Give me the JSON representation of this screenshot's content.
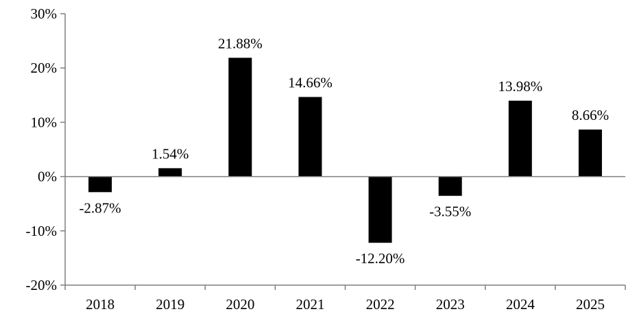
{
  "chart_data": {
    "type": "bar",
    "title": "",
    "xlabel": "",
    "ylabel": "",
    "categories": [
      "2018",
      "2019",
      "2020",
      "2021",
      "2022",
      "2023",
      "2024",
      "2025"
    ],
    "values": [
      -2.87,
      1.54,
      21.88,
      14.66,
      -12.2,
      -3.55,
      13.98,
      8.66
    ],
    "data_labels": [
      "-2.87%",
      "1.54%",
      "21.88%",
      "14.66%",
      "-12.20%",
      "-3.55%",
      "13.98%",
      "8.66%"
    ],
    "ylim": [
      -20,
      30
    ],
    "yticks": [
      -20,
      -10,
      0,
      10,
      20,
      30
    ],
    "ytick_labels": [
      "-20%",
      "-10%",
      "0%",
      "10%",
      "20%",
      "30%"
    ],
    "grid": false,
    "legend": "none",
    "bar_color": "#000000",
    "axis_color": "#7f7f7f"
  }
}
